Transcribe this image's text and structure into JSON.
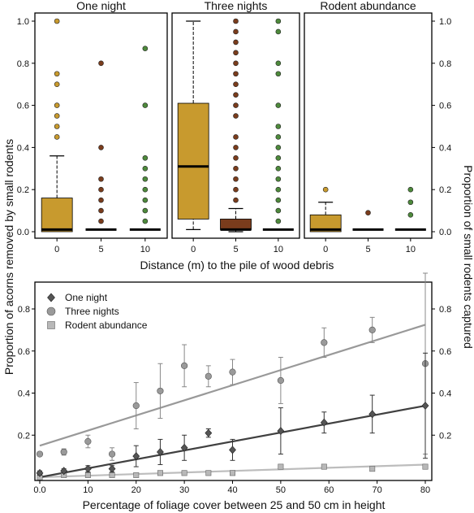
{
  "y_label_left": "Proportion of acorns removed by small rodents",
  "y_label_right": "Proportion of small rodents captured",
  "colors": {
    "d0": "#c89a2e",
    "d5": "#7a3c1c",
    "d10": "#4e8a3c",
    "line_one": "#404040",
    "line_three": "#999999",
    "line_rodent": "#bdbdbd"
  },
  "chart_data": [
    {
      "type": "box",
      "xlabel": "Distance (m) to the pile of wood debris",
      "ylim": [
        0,
        1
      ],
      "yticks": [
        "0.0",
        "0.2",
        "0.4",
        "0.6",
        "0.8",
        "1.0"
      ],
      "categories": [
        "0",
        "5",
        "10"
      ],
      "panels": [
        {
          "title": "One night",
          "boxes": [
            {
              "category": "0",
              "q1": 0,
              "median": 0.01,
              "q3": 0.16,
              "whisker_low": 0,
              "whisker_high": 0.36,
              "outliers": [
                0.45,
                0.5,
                0.55,
                0.6,
                0.7,
                0.75,
                1.0
              ]
            },
            {
              "category": "5",
              "q1": 0,
              "median": 0.01,
              "q3": 0.01,
              "whisker_low": 0,
              "whisker_high": 0.01,
              "outliers": [
                0.05,
                0.1,
                0.15,
                0.2,
                0.25,
                0.4,
                0.8
              ]
            },
            {
              "category": "10",
              "q1": 0,
              "median": 0.01,
              "q3": 0.01,
              "whisker_low": 0,
              "whisker_high": 0.01,
              "outliers": [
                0.05,
                0.1,
                0.15,
                0.2,
                0.25,
                0.3,
                0.35,
                0.6,
                0.87
              ]
            }
          ]
        },
        {
          "title": "Three nights",
          "boxes": [
            {
              "category": "0",
              "q1": 0.06,
              "median": 0.31,
              "q3": 0.61,
              "whisker_low": 0.01,
              "whisker_high": 1.0,
              "outliers": []
            },
            {
              "category": "5",
              "q1": 0.01,
              "median": 0.01,
              "q3": 0.06,
              "whisker_low": 0,
              "whisker_high": 0.11,
              "outliers": [
                0.15,
                0.2,
                0.25,
                0.3,
                0.35,
                0.4,
                0.45,
                0.55,
                0.6,
                0.65,
                0.7,
                0.75,
                0.8,
                0.85,
                0.9,
                0.95,
                1.0
              ]
            },
            {
              "category": "10",
              "q1": 0,
              "median": 0.01,
              "q3": 0.01,
              "whisker_low": 0,
              "whisker_high": 0.01,
              "outliers": [
                0.05,
                0.1,
                0.15,
                0.2,
                0.25,
                0.3,
                0.35,
                0.4,
                0.45,
                0.5,
                0.6,
                0.75,
                0.8,
                0.95,
                1.0
              ]
            }
          ]
        },
        {
          "title": "Rodent abundance",
          "boxes": [
            {
              "category": "0",
              "q1": 0,
              "median": 0.01,
              "q3": 0.08,
              "whisker_low": 0,
              "whisker_high": 0.14,
              "outliers": [
                0.2
              ]
            },
            {
              "category": "5",
              "q1": 0,
              "median": 0.01,
              "q3": 0.01,
              "whisker_low": 0,
              "whisker_high": 0.01,
              "outliers": [
                0.09
              ]
            },
            {
              "category": "10",
              "q1": 0,
              "median": 0.01,
              "q3": 0.01,
              "whisker_low": 0,
              "whisker_high": 0.01,
              "outliers": [
                0.08,
                0.14,
                0.2
              ]
            }
          ]
        }
      ]
    },
    {
      "type": "scatter",
      "xlabel": "Percentage of foliage cover between 25 and 50 cm in height",
      "xlim": [
        0,
        82
      ],
      "ylim": [
        0,
        0.8
      ],
      "xticks": [
        "0.0",
        "10",
        "20",
        "30",
        "40",
        "50",
        "60",
        "70",
        "80"
      ],
      "yticks": [
        "0.2",
        "0.4",
        "0.6",
        "0.8"
      ],
      "legend": "top-left",
      "series": [
        {
          "name": "One night",
          "marker": "diamond",
          "x": [
            0,
            5,
            10,
            15,
            20,
            25,
            30,
            35,
            40,
            50,
            59,
            69,
            80
          ],
          "y": [
            0.02,
            0.03,
            0.04,
            0.04,
            0.1,
            0.12,
            0.14,
            0.21,
            0.13,
            0.22,
            0.26,
            0.3,
            0.34
          ],
          "err": [
            0.01,
            0.01,
            0.015,
            0.015,
            0.05,
            0.06,
            0.06,
            0.02,
            0.05,
            0.11,
            0.05,
            0.09,
            0.25
          ],
          "fit": [
            0.0,
            0.34
          ]
        },
        {
          "name": "Three nights",
          "marker": "circle",
          "x": [
            0,
            5,
            10,
            15,
            20,
            25,
            30,
            35,
            40,
            50,
            59,
            69,
            80
          ],
          "y": [
            0.11,
            0.12,
            0.17,
            0.11,
            0.34,
            0.41,
            0.53,
            0.48,
            0.5,
            0.46,
            0.64,
            0.7,
            0.54
          ],
          "err": [
            0.0,
            0.015,
            0.03,
            0.03,
            0.11,
            0.13,
            0.1,
            0.05,
            0.06,
            0.11,
            0.07,
            0.06,
            0.43
          ],
          "fit": [
            0.15,
            0.725
          ]
        },
        {
          "name": "Rodent abundance",
          "marker": "square",
          "x": [
            0,
            5,
            10,
            15,
            20,
            25,
            30,
            35,
            40,
            50,
            59,
            69,
            80
          ],
          "y": [
            0.0,
            0.01,
            0.01,
            0.01,
            0.01,
            0.02,
            0.02,
            0.02,
            0.02,
            0.05,
            0.05,
            0.04,
            0.05
          ],
          "err": [
            0,
            0,
            0,
            0,
            0,
            0,
            0,
            0,
            0,
            0,
            0,
            0,
            0
          ],
          "fit": [
            0.0,
            0.06
          ]
        }
      ]
    }
  ]
}
